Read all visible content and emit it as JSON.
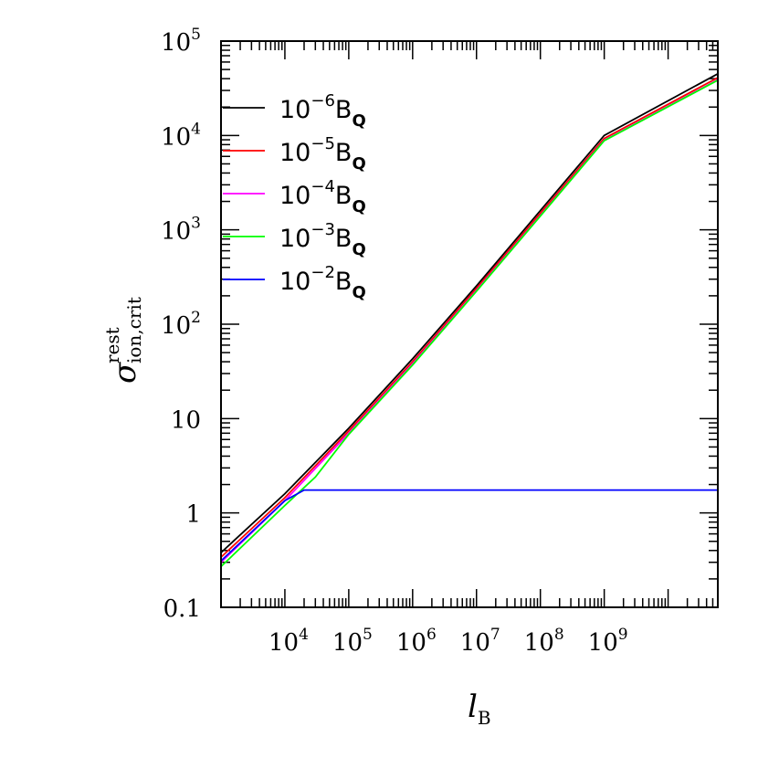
{
  "chart_data": {
    "type": "line",
    "title": "",
    "xlabel": "l",
    "xlabel_sub": "B",
    "ylabel": "σ",
    "ylabel_sup": "rest",
    "ylabel_sub": "ion,crit",
    "x_scale": "log",
    "y_scale": "log",
    "xlim": [
      1000,
      60000000000
    ],
    "ylim": [
      0.1,
      100000
    ],
    "grid": false,
    "legend_position": "top-left",
    "x_ticks": [
      {
        "value": 10000,
        "base": "10",
        "exp": "4"
      },
      {
        "value": 100000,
        "base": "10",
        "exp": "5"
      },
      {
        "value": 1000000,
        "base": "10",
        "exp": "6"
      },
      {
        "value": 10000000,
        "base": "10",
        "exp": "7"
      },
      {
        "value": 100000000,
        "base": "10",
        "exp": "8"
      },
      {
        "value": 1000000000,
        "base": "10",
        "exp": "9"
      }
    ],
    "y_ticks": [
      {
        "value": 0.1,
        "base": "0.1",
        "exp": ""
      },
      {
        "value": 1,
        "base": "1",
        "exp": ""
      },
      {
        "value": 10,
        "base": "10",
        "exp": ""
      },
      {
        "value": 100,
        "base": "10",
        "exp": "2"
      },
      {
        "value": 1000,
        "base": "10",
        "exp": "3"
      },
      {
        "value": 10000,
        "base": "10",
        "exp": "4"
      },
      {
        "value": 100000,
        "base": "10",
        "exp": "5"
      }
    ],
    "series": [
      {
        "label_base": "10",
        "label_exp": "−6",
        "label_unit": "B",
        "label_unit_sub": "Q",
        "color": "#000000",
        "x": [
          1000,
          10000,
          100000,
          1000000,
          10000000,
          100000000,
          1000000000,
          60000000000
        ],
        "y": [
          0.38,
          1.6,
          7.9,
          43,
          255,
          1600,
          10000,
          45000
        ]
      },
      {
        "label_base": "10",
        "label_exp": "−5",
        "label_unit": "B",
        "label_unit_sub": "Q",
        "color": "#ff0000",
        "x": [
          1000,
          10000,
          100000,
          1000000,
          10000000,
          100000000,
          1000000000,
          60000000000
        ],
        "y": [
          0.34,
          1.45,
          7.4,
          40,
          240,
          1500,
          9300,
          41000
        ]
      },
      {
        "label_base": "10",
        "label_exp": "−4",
        "label_unit": "B",
        "label_unit_sub": "Q",
        "color": "#ff00ff",
        "x": [
          1000,
          10000,
          100000,
          1000000,
          10000000,
          100000000,
          1000000000,
          60000000000
        ],
        "y": [
          0.3,
          1.35,
          7.0,
          38,
          228,
          1420,
          8900,
          39000
        ]
      },
      {
        "label_base": "10",
        "label_exp": "−3",
        "label_unit": "B",
        "label_unit_sub": "Q",
        "color": "#00ff00",
        "x": [
          1000,
          10000,
          30000,
          100000,
          1000000,
          10000000,
          100000000,
          1000000000,
          60000000000
        ],
        "y": [
          0.27,
          1.2,
          2.4,
          6.8,
          37,
          224,
          1400,
          8800,
          38500
        ]
      },
      {
        "label_base": "10",
        "label_exp": "−2",
        "label_unit": "B",
        "label_unit_sub": "Q",
        "color": "#0000ff",
        "x": [
          1000,
          10000,
          20000,
          60000000000
        ],
        "y": [
          0.31,
          1.35,
          1.75,
          1.75
        ]
      }
    ]
  }
}
